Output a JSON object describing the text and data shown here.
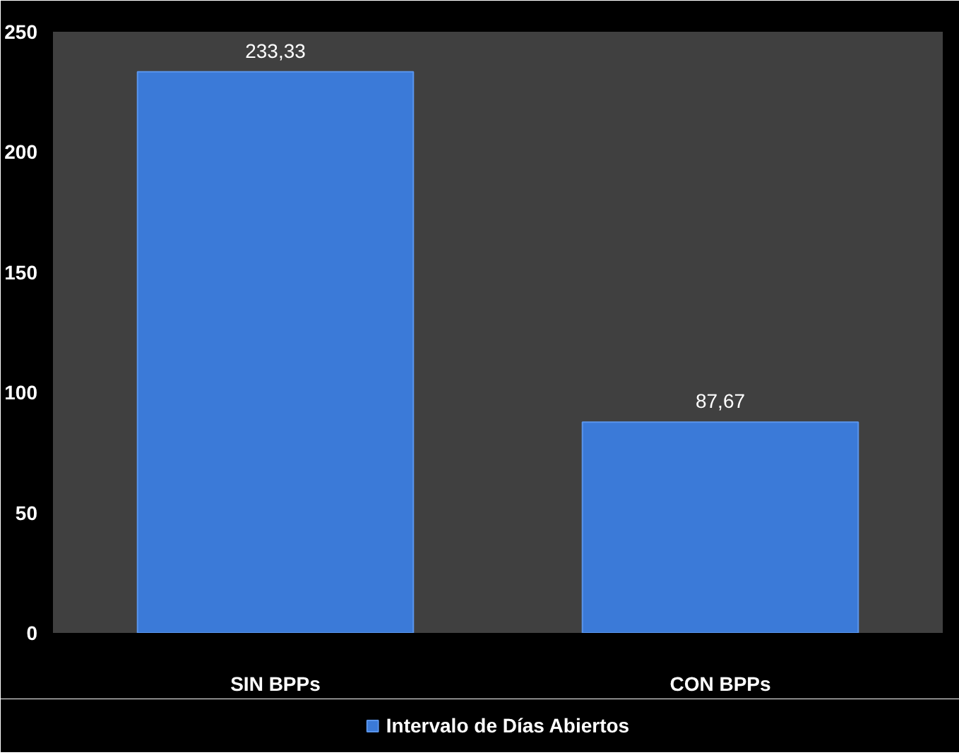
{
  "chart_data": {
    "type": "bar",
    "categories": [
      "SIN BPPs",
      "CON BPPs"
    ],
    "series": [
      {
        "name": "Intervalo de Días Abiertos",
        "color": "#3b7ad8",
        "values": [
          233.33,
          87.67
        ],
        "value_labels": [
          "233,33",
          "87,67"
        ]
      }
    ],
    "ylim": [
      0,
      250
    ],
    "yticks": [
      0,
      50,
      100,
      150,
      200,
      250
    ],
    "grid": false,
    "legend": "bottom"
  }
}
